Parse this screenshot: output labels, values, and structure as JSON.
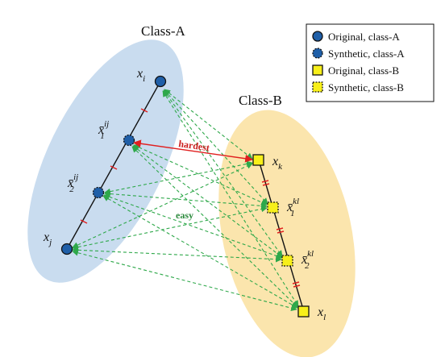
{
  "groups": {
    "class_a": {
      "label": "Class-A",
      "fill": "#c9dcef"
    },
    "class_b": {
      "label": "Class-B",
      "fill": "#fbe5ad"
    }
  },
  "legend": {
    "items": [
      {
        "label": "Original, class-A",
        "marker": "circle-solid"
      },
      {
        "label": "Synthetic, class-A",
        "marker": "circle-dashed"
      },
      {
        "label": "Original, class-B",
        "marker": "square-solid"
      },
      {
        "label": "Synthetic, class-B",
        "marker": "square-dashed"
      }
    ]
  },
  "nodes": {
    "xi": {
      "base": "x",
      "sub": "i"
    },
    "x1ij": {
      "base": "x̄",
      "sub": "1",
      "sup": "ij"
    },
    "x2ij": {
      "base": "x̄",
      "sub": "2",
      "sup": "ij"
    },
    "xj": {
      "base": "x",
      "sub": "j"
    },
    "xk": {
      "base": "x",
      "sub": "k"
    },
    "x1kl": {
      "base": "x̄",
      "sub": "1",
      "sup": "kl"
    },
    "x2kl": {
      "base": "x̄",
      "sub": "2",
      "sup": "kl"
    },
    "xl": {
      "base": "x",
      "sub": "l"
    }
  },
  "annotations": {
    "hardest": "hardest",
    "easy": "easy"
  },
  "colors": {
    "class_a_marker": "#1f5fa8",
    "class_b_marker": "#f7ef1a",
    "hardest_arrow": "#e02020",
    "easy_arrows": "#2ea84a",
    "hardest_text": "#cc1f1f",
    "easy_text": "#2c8a3d",
    "tick_marks": "#e02020"
  }
}
